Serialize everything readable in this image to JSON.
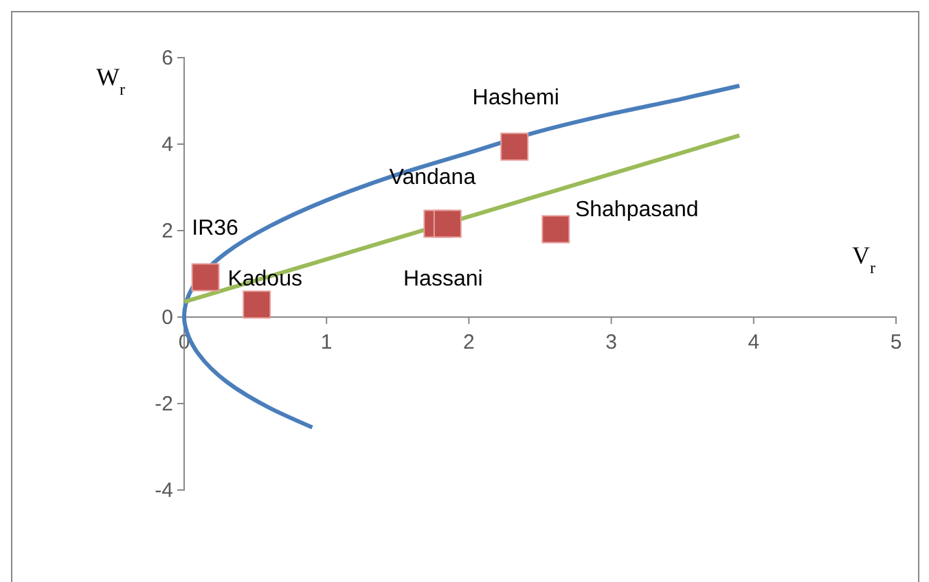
{
  "chart_data": {
    "type": "scatter",
    "xlabel": "V$_{r}$",
    "ylabel": "W$_{r}$",
    "xlim": [
      0,
      5
    ],
    "xticks": [
      0,
      1,
      2,
      3,
      4,
      5
    ],
    "ylim": [
      -4,
      6
    ],
    "yticks": [
      -4,
      -2,
      0,
      2,
      4,
      6
    ],
    "grid": false,
    "series": [
      {
        "type": "line",
        "color": "#4a7ebb",
        "marker": "none",
        "x": [
          0.9,
          0.6,
          0.3,
          0.1,
          0.02,
          0,
          0.02,
          0.3,
          0.6,
          1,
          1.5,
          2,
          2.5,
          3,
          3.5,
          3.9
        ],
        "values": [
          -2.55,
          -2.1,
          -1.5,
          -0.85,
          -0.35,
          0,
          0.4,
          1.5,
          2.1,
          2.7,
          3.3,
          3.8,
          4.3,
          4.7,
          5.05,
          5.35
        ]
      },
      {
        "type": "line",
        "color": "#9bbb59",
        "marker": "none",
        "x": [
          0,
          3.9
        ],
        "values": [
          0.35,
          4.2
        ]
      },
      {
        "color": "#c0504d",
        "marker": "square",
        "x": [
          0.15,
          0.51,
          1.78,
          1.85,
          2.32,
          2.61
        ],
        "values": [
          0.92,
          0.29,
          2.16,
          2.16,
          3.94,
          2.03
        ]
      }
    ],
    "annotations": [
      {
        "text": "Hashemi",
        "x": 2.32,
        "y": 3.94
      },
      {
        "text": "Vandana",
        "x": 1.85,
        "y": 2.16
      },
      {
        "text": "Shahpasand",
        "x": 2.61,
        "y": 2.03
      },
      {
        "text": "IR36",
        "x": 0.15,
        "y": 0.92
      },
      {
        "text": "Hassani",
        "x": 1.78,
        "y": 2.16
      },
      {
        "text": "Kadous",
        "x": 0.51,
        "y": 0.29
      }
    ]
  }
}
